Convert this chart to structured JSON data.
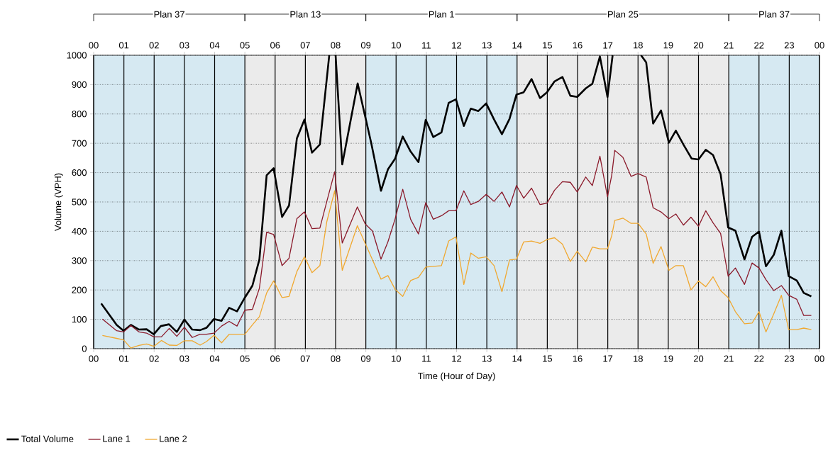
{
  "chart_data": {
    "type": "line",
    "xlabel": "Time (Hour of Day)",
    "ylabel": "Volume (VPH)",
    "xlim": [
      0,
      24
    ],
    "ylim": [
      0,
      1000
    ],
    "xticks": [
      {
        "value": 0,
        "label": "00"
      },
      {
        "value": 1,
        "label": "01"
      },
      {
        "value": 2,
        "label": "02"
      },
      {
        "value": 3,
        "label": "03"
      },
      {
        "value": 4,
        "label": "04"
      },
      {
        "value": 5,
        "label": "05"
      },
      {
        "value": 6,
        "label": "06"
      },
      {
        "value": 7,
        "label": "07"
      },
      {
        "value": 8,
        "label": "08"
      },
      {
        "value": 9,
        "label": "09"
      },
      {
        "value": 10,
        "label": "10"
      },
      {
        "value": 11,
        "label": "11"
      },
      {
        "value": 12,
        "label": "12"
      },
      {
        "value": 13,
        "label": "13"
      },
      {
        "value": 14,
        "label": "14"
      },
      {
        "value": 15,
        "label": "15"
      },
      {
        "value": 16,
        "label": "16"
      },
      {
        "value": 17,
        "label": "17"
      },
      {
        "value": 18,
        "label": "18"
      },
      {
        "value": 19,
        "label": "19"
      },
      {
        "value": 20,
        "label": "20"
      },
      {
        "value": 21,
        "label": "21"
      },
      {
        "value": 22,
        "label": "22"
      },
      {
        "value": 23,
        "label": "23"
      },
      {
        "value": 24,
        "label": "00"
      }
    ],
    "yticks": [
      0,
      100,
      200,
      300,
      400,
      500,
      600,
      700,
      800,
      900,
      1000
    ],
    "grid": true,
    "legend": "bottom left",
    "annotations": [
      "Plan 37",
      "Plan 13",
      "Plan 1",
      "Plan 25",
      "Plan 37"
    ],
    "bands": [
      {
        "axis": "x",
        "from": 0,
        "to": 5,
        "color": "#d6e9f2"
      },
      {
        "axis": "x",
        "from": 5,
        "to": 9,
        "color": "#ebebeb"
      },
      {
        "axis": "x",
        "from": 9,
        "to": 14,
        "color": "#d6e9f2"
      },
      {
        "axis": "x",
        "from": 14,
        "to": 21,
        "color": "#ebebeb"
      },
      {
        "axis": "x",
        "from": 21,
        "to": 24,
        "color": "#d6e9f2"
      }
    ],
    "series": [
      {
        "name": "Total Volume",
        "color": "#000000",
        "x": [
          0.25,
          0.76,
          0.99,
          1.23,
          1.5,
          1.75,
          1.99,
          2.22,
          2.49,
          2.75,
          3.0,
          3.26,
          3.52,
          3.73,
          3.98,
          4.23,
          4.48,
          4.74,
          5.0,
          5.25,
          5.48,
          5.72,
          5.95,
          6.23,
          6.46,
          6.72,
          6.97,
          7.22,
          7.48,
          7.79,
          7.9,
          8.0,
          8.22,
          8.73,
          9.18,
          9.5,
          9.73,
          9.97,
          10.22,
          10.48,
          10.74,
          10.98,
          11.23,
          11.5,
          11.74,
          11.98,
          12.24,
          12.47,
          12.72,
          12.98,
          13.24,
          13.5,
          13.75,
          13.98,
          14.22,
          14.48,
          14.76,
          14.99,
          15.24,
          15.5,
          15.76,
          15.99,
          16.27,
          16.49,
          16.74,
          16.99,
          17.16,
          17.6,
          18.1,
          18.27,
          18.5,
          18.76,
          19.02,
          19.25,
          19.5,
          19.77,
          20.0,
          20.24,
          20.48,
          20.73,
          20.98,
          21.22,
          21.52,
          21.77,
          22.0,
          22.23,
          22.49,
          22.74,
          22.98,
          23.25,
          23.48,
          23.73
        ],
        "values": [
          154,
          81,
          61,
          81,
          65,
          66,
          49,
          77,
          83,
          57,
          99,
          65,
          63,
          71,
          101,
          95,
          139,
          127,
          174,
          215,
          304,
          591,
          615,
          449,
          488,
          717,
          781,
          668,
          696,
          1000,
          null,
          1000,
          628,
          904,
          700,
          538,
          611,
          648,
          723,
          672,
          636,
          780,
          721,
          737,
          838,
          850,
          759,
          818,
          810,
          836,
          781,
          731,
          783,
          866,
          874,
          919,
          854,
          874,
          911,
          926,
          862,
          858,
          887,
          903,
          996,
          858,
          1000,
          null,
          1000,
          976,
          767,
          812,
          702,
          743,
          696,
          648,
          645,
          678,
          660,
          595,
          413,
          402,
          304,
          381,
          399,
          281,
          320,
          402,
          247,
          232,
          190,
          178
        ]
      },
      {
        "name": "Lane 1",
        "color": "#8b1a2b",
        "x": [
          0.29,
          0.76,
          0.99,
          1.23,
          1.5,
          1.75,
          1.99,
          2.24,
          2.5,
          2.75,
          3.0,
          3.26,
          3.52,
          3.73,
          3.98,
          4.23,
          4.48,
          4.74,
          5.0,
          5.25,
          5.48,
          5.72,
          5.95,
          6.23,
          6.46,
          6.72,
          6.97,
          7.22,
          7.48,
          7.71,
          7.97,
          8.22,
          8.72,
          8.98,
          9.22,
          9.5,
          9.73,
          9.97,
          10.22,
          10.48,
          10.74,
          10.98,
          11.23,
          11.5,
          11.74,
          11.98,
          12.24,
          12.47,
          12.72,
          12.98,
          13.24,
          13.5,
          13.75,
          13.98,
          14.22,
          14.48,
          14.76,
          14.99,
          15.24,
          15.5,
          15.76,
          15.99,
          16.27,
          16.49,
          16.74,
          16.99,
          17.13,
          17.23,
          17.5,
          17.77,
          18.0,
          18.27,
          18.5,
          18.76,
          19.02,
          19.25,
          19.5,
          19.75,
          20.0,
          20.24,
          20.48,
          20.73,
          20.98,
          21.22,
          21.52,
          21.77,
          22.0,
          22.23,
          22.49,
          22.74,
          22.98,
          23.25,
          23.48,
          23.73
        ],
        "values": [
          101,
          61,
          57,
          79,
          57,
          53,
          40,
          40,
          69,
          42,
          73,
          38,
          49,
          49,
          53,
          77,
          93,
          77,
          131,
          134,
          206,
          397,
          389,
          283,
          308,
          443,
          466,
          409,
          411,
          502,
          603,
          360,
          483,
          425,
          401,
          305,
          364,
          443,
          543,
          441,
          391,
          498,
          441,
          453,
          470,
          470,
          538,
          491,
          502,
          526,
          502,
          534,
          483,
          556,
          513,
          547,
          491,
          496,
          540,
          569,
          567,
          534,
          585,
          556,
          656,
          518,
          591,
          676,
          652,
          587,
          597,
          585,
          480,
          466,
          443,
          459,
          421,
          448,
          417,
          470,
          429,
          393,
          247,
          275,
          219,
          292,
          275,
          235,
          198,
          215,
          182,
          168,
          113,
          113
        ]
      },
      {
        "name": "Lane 2",
        "color": "#f0a830",
        "x": [
          0.29,
          0.76,
          0.99,
          1.23,
          1.5,
          1.75,
          1.99,
          2.24,
          2.5,
          2.75,
          3.0,
          3.26,
          3.52,
          3.73,
          3.98,
          4.23,
          4.48,
          4.74,
          5.0,
          5.25,
          5.48,
          5.72,
          5.95,
          6.23,
          6.46,
          6.72,
          6.97,
          7.22,
          7.48,
          7.71,
          7.97,
          8.22,
          8.72,
          9.18,
          9.5,
          9.73,
          9.97,
          10.22,
          10.48,
          10.74,
          10.98,
          11.5,
          11.74,
          11.98,
          12.24,
          12.47,
          12.72,
          12.98,
          13.24,
          13.5,
          13.75,
          13.98,
          14.22,
          14.48,
          14.76,
          14.99,
          15.24,
          15.5,
          15.76,
          15.99,
          16.27,
          16.49,
          16.74,
          16.99,
          17.13,
          17.23,
          17.5,
          17.77,
          18.0,
          18.27,
          18.5,
          18.76,
          19.02,
          19.25,
          19.5,
          19.75,
          20.0,
          20.24,
          20.48,
          20.73,
          20.98,
          21.22,
          21.52,
          21.77,
          22.0,
          22.23,
          22.49,
          22.74,
          22.98,
          23.25,
          23.48,
          23.73
        ],
        "values": [
          45,
          35,
          30,
          2,
          11,
          16,
          8,
          28,
          12,
          11,
          27,
          27,
          12,
          24,
          46,
          20,
          49,
          49,
          49,
          81,
          109,
          190,
          231,
          174,
          178,
          263,
          313,
          259,
          283,
          433,
          538,
          267,
          419,
          312,
          237,
          249,
          202,
          178,
          232,
          243,
          278,
          283,
          367,
          381,
          219,
          326,
          308,
          313,
          283,
          194,
          302,
          305,
          364,
          367,
          359,
          372,
          378,
          356,
          297,
          332,
          296,
          346,
          340,
          340,
          385,
          437,
          445,
          427,
          427,
          391,
          291,
          348,
          267,
          283,
          283,
          200,
          231,
          211,
          245,
          198,
          174,
          126,
          85,
          87,
          126,
          57,
          119,
          182,
          65,
          65,
          70,
          65
        ]
      }
    ]
  }
}
